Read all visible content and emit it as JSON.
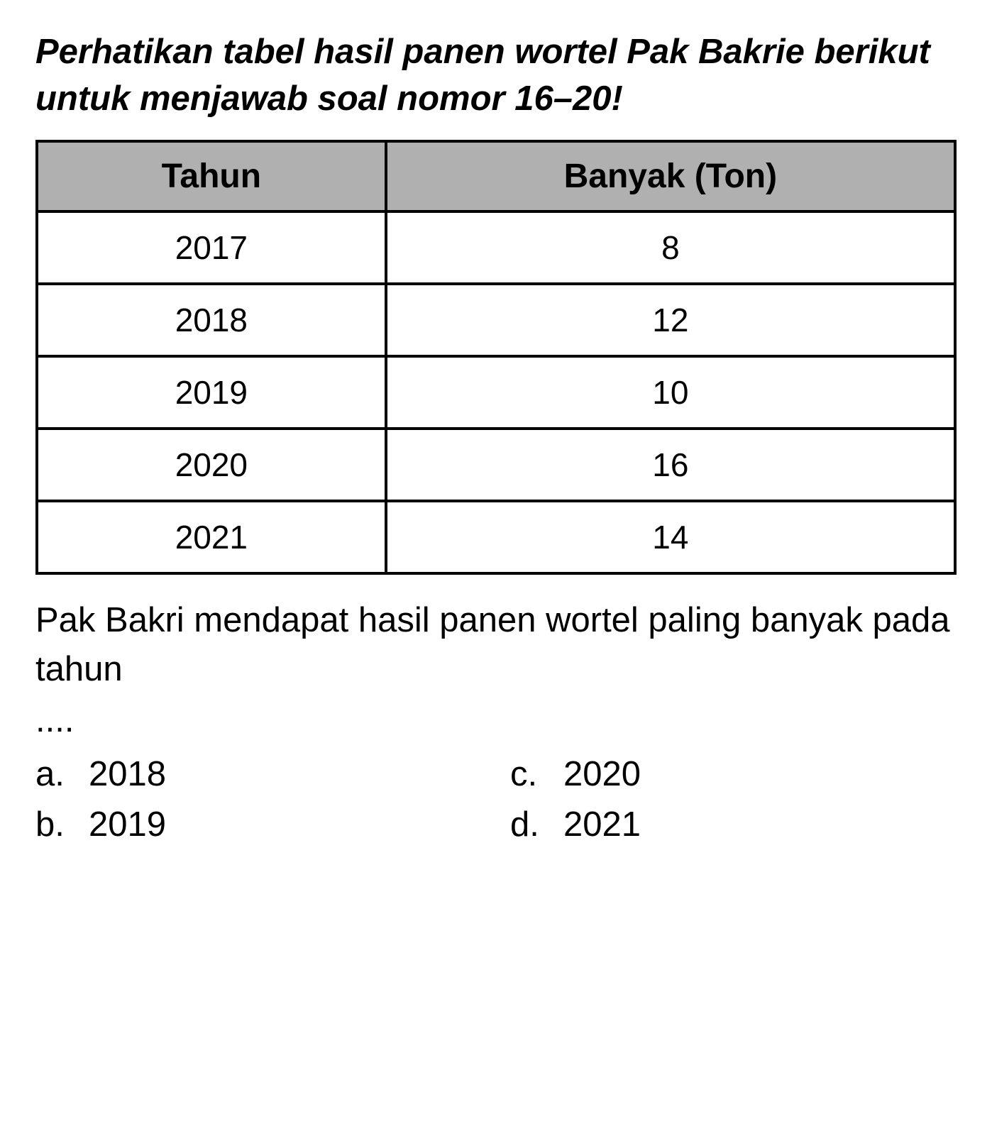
{
  "instruction": "Perhatikan tabel hasil panen wortel Pak Bakrie berikut untuk menjawab soal nomor 16–20!",
  "table": {
    "columns": [
      "Tahun",
      "Banyak (Ton)"
    ],
    "rows": [
      [
        "2017",
        "8"
      ],
      [
        "2018",
        "12"
      ],
      [
        "2019",
        "10"
      ],
      [
        "2020",
        "16"
      ],
      [
        "2021",
        "14"
      ]
    ],
    "header_bg": "#b0b0b0",
    "border_color": "#000000",
    "cell_bg": "#ffffff"
  },
  "question": "Pak Bakri mendapat hasil panen wortel paling banyak pada tahun",
  "dots": "....",
  "options": {
    "a": {
      "letter": "a.",
      "text": "2018"
    },
    "b": {
      "letter": "b.",
      "text": "2019"
    },
    "c": {
      "letter": "c.",
      "text": "2020"
    },
    "d": {
      "letter": "d.",
      "text": "2021"
    }
  },
  "styling": {
    "instruction_fontsize": 49,
    "instruction_weight": "bold",
    "instruction_style": "italic",
    "table_header_fontsize": 48,
    "table_cell_fontsize": 46,
    "question_fontsize": 49,
    "option_fontsize": 49,
    "text_color": "#000000",
    "background_color": "#ffffff"
  }
}
